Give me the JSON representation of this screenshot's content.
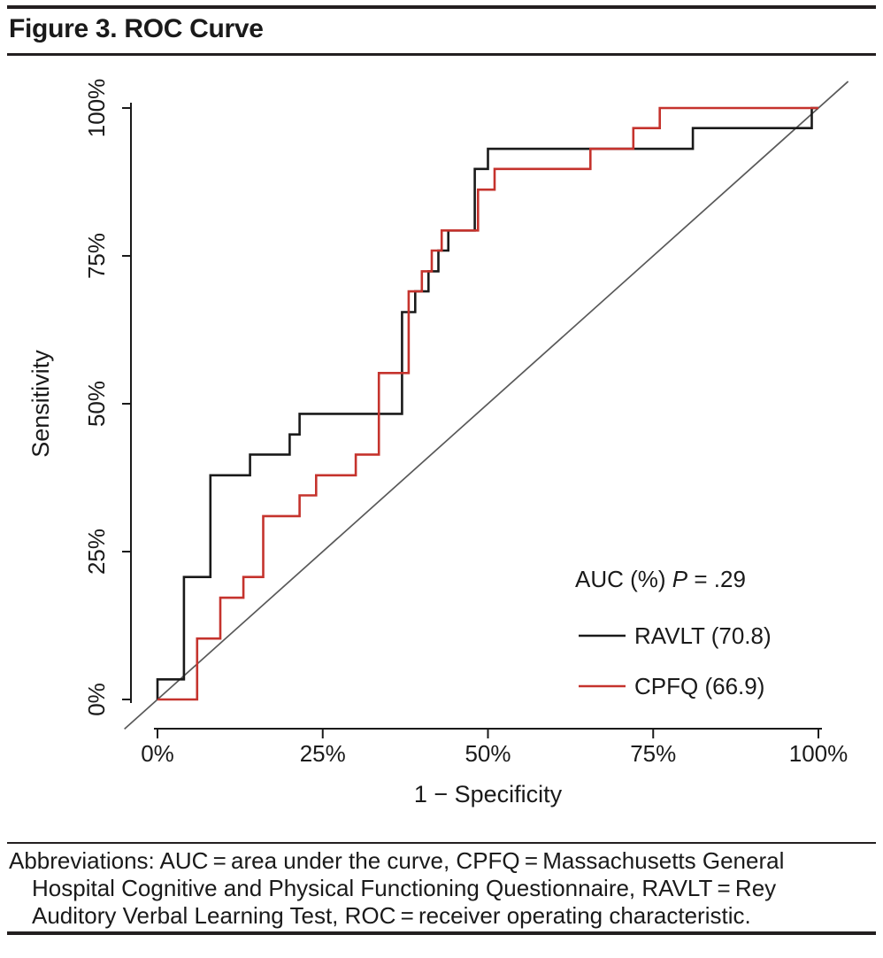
{
  "figure": {
    "title": "Figure 3. ROC Curve"
  },
  "chart_data": {
    "type": "line",
    "subtype": "roc-step-curves",
    "title": "Figure 3. ROC Curve",
    "xlabel": "1 − Specificity",
    "ylabel": "Sensitivity",
    "xlim": [
      0,
      100
    ],
    "ylim": [
      0,
      100
    ],
    "grid": false,
    "x_tick_values": [
      0,
      25,
      50,
      75,
      100
    ],
    "x_tick_labels": [
      "0%",
      "25%",
      "50%",
      "75%",
      "100%"
    ],
    "y_tick_values": [
      0,
      25,
      50,
      75,
      100
    ],
    "y_tick_labels": [
      "0%",
      "25%",
      "50%",
      "75%",
      "100%"
    ],
    "reference_line": {
      "type": "chance-diagonal",
      "color": "#595959"
    },
    "legend": {
      "position": "lower-right",
      "heading_plain": "AUC (%) P = .29",
      "heading_pre": "AUC (%) ",
      "heading_italic": "P",
      "heading_post": " = .29",
      "p_value": ".29"
    },
    "series": [
      {
        "id": "ravlt",
        "name": "RAVLT (70.8)",
        "auc_percent": 70.8,
        "color": "#1a1a1a",
        "points": [
          [
            0,
            0
          ],
          [
            0,
            3.4
          ],
          [
            4,
            3.4
          ],
          [
            4,
            20.7
          ],
          [
            8,
            20.7
          ],
          [
            8,
            37.9
          ],
          [
            14,
            37.9
          ],
          [
            14,
            41.4
          ],
          [
            20,
            41.4
          ],
          [
            20,
            44.8
          ],
          [
            21.5,
            44.8
          ],
          [
            21.5,
            48.3
          ],
          [
            37,
            48.3
          ],
          [
            37,
            65.5
          ],
          [
            39,
            65.5
          ],
          [
            39,
            69
          ],
          [
            41,
            69
          ],
          [
            41,
            72.4
          ],
          [
            42.5,
            72.4
          ],
          [
            42.5,
            75.9
          ],
          [
            44,
            75.9
          ],
          [
            44,
            79.3
          ],
          [
            48,
            79.3
          ],
          [
            48,
            89.7
          ],
          [
            50,
            89.7
          ],
          [
            50,
            93.1
          ],
          [
            81,
            93.1
          ],
          [
            81,
            96.6
          ],
          [
            99,
            96.6
          ],
          [
            99,
            100
          ],
          [
            100,
            100
          ]
        ]
      },
      {
        "id": "cpfq",
        "name": "CPFQ (66.9)",
        "auc_percent": 66.9,
        "color": "#c5332d",
        "points": [
          [
            0,
            0
          ],
          [
            6,
            0
          ],
          [
            6,
            10.3
          ],
          [
            9.5,
            10.3
          ],
          [
            9.5,
            17.2
          ],
          [
            13,
            17.2
          ],
          [
            13,
            20.7
          ],
          [
            16,
            20.7
          ],
          [
            16,
            31
          ],
          [
            21.5,
            31
          ],
          [
            21.5,
            34.5
          ],
          [
            24,
            34.5
          ],
          [
            24,
            37.9
          ],
          [
            30,
            37.9
          ],
          [
            30,
            41.4
          ],
          [
            33.5,
            41.4
          ],
          [
            33.5,
            55.2
          ],
          [
            38,
            55.2
          ],
          [
            38,
            69
          ],
          [
            40,
            69
          ],
          [
            40,
            72.4
          ],
          [
            41.5,
            72.4
          ],
          [
            41.5,
            75.9
          ],
          [
            43,
            75.9
          ],
          [
            43,
            79.3
          ],
          [
            48.5,
            79.3
          ],
          [
            48.5,
            86.2
          ],
          [
            51,
            86.2
          ],
          [
            51,
            89.7
          ],
          [
            65.5,
            89.7
          ],
          [
            65.5,
            93.1
          ],
          [
            72,
            93.1
          ],
          [
            72,
            96.6
          ],
          [
            76,
            96.6
          ],
          [
            76,
            100
          ],
          [
            100,
            100
          ]
        ]
      }
    ]
  },
  "footer": {
    "lines": [
      "Abbreviations: AUC = area under the curve, CPFQ = Massachusetts General",
      "Hospital Cognitive and Physical Functioning Questionnaire, RAVLT = Rey",
      "Auditory Verbal Learning Test, ROC = receiver operating characteristic."
    ]
  }
}
